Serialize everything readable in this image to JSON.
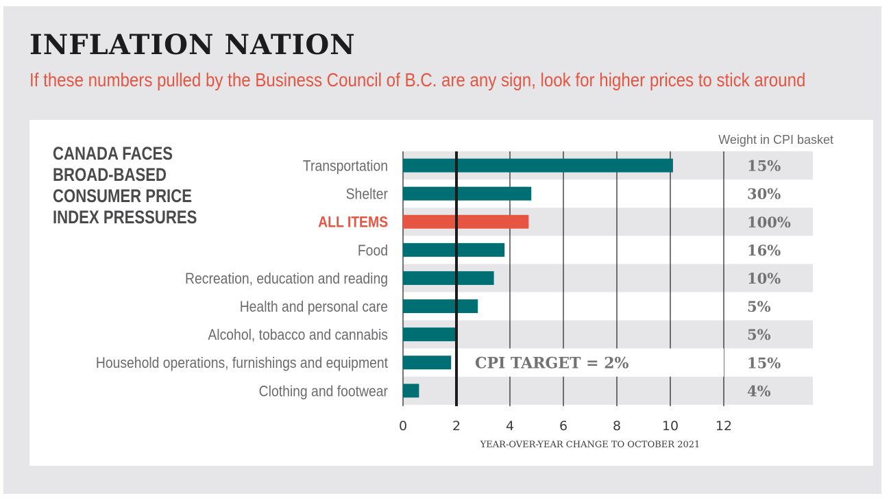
{
  "header": {
    "title": "INFLATION NATION",
    "subtitle": "If these numbers pulled by the Business Council of B.C. are any sign, look for higher prices to stick around"
  },
  "colors": {
    "bar": "#006f73",
    "highlight": "#e65541",
    "band": "#e6e6e8",
    "target_line": "#1c1c1c"
  },
  "chart_data": {
    "type": "bar",
    "orientation": "horizontal",
    "title": "CANADA FACES BROAD-BASED CONSUMER PRICE INDEX PRESSURES",
    "xlabel": "YEAR-OVER-YEAR CHANGE TO OCTOBER 2021",
    "ylabel": "",
    "xlim": [
      0,
      12
    ],
    "xticks": [
      0,
      2,
      4,
      6,
      8,
      10,
      12
    ],
    "grid": true,
    "categories": [
      "Transportation",
      "Shelter",
      "ALL ITEMS",
      "Food",
      "Recreation, education and reading",
      "Health and personal care",
      "Alcohol, tobacco and cannabis",
      "Household operations, furnishings and equipment",
      "Clothing and footwear"
    ],
    "values": [
      10.1,
      4.8,
      4.7,
      3.8,
      3.4,
      2.8,
      2.0,
      1.8,
      0.6
    ],
    "highlight_index": 2,
    "weights_header": "Weight in CPI basket",
    "weights": [
      "15%",
      "30%",
      "100%",
      "16%",
      "10%",
      "5%",
      "5%",
      "15%",
      "4%"
    ],
    "reference_line": {
      "value": 2,
      "label": "CPI TARGET = 2%"
    }
  }
}
